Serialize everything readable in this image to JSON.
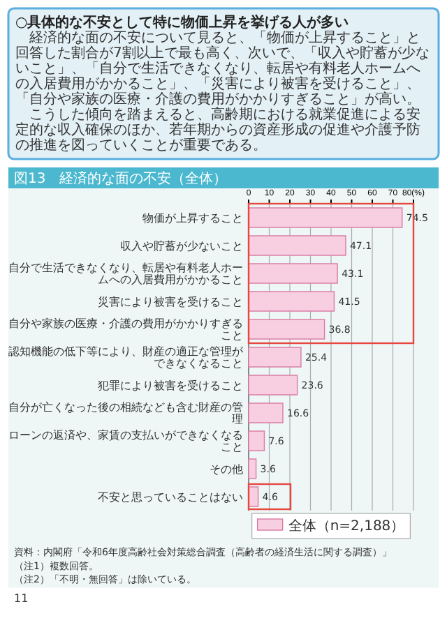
{
  "chart_data": {
    "type": "bar",
    "orientation": "horizontal",
    "title": "図13　経済的な面の不安（全体）",
    "categories": [
      "物価が上昇すること",
      "収入や貯蓄が少ないこと",
      "自分で生活できなくなり、転居や有料老人ホームへの入居費用がかかること",
      "災害により被害を受けること",
      "自分や家族の医療・介護の費用がかかりすぎること",
      "認知機能の低下等により、財産の適正な管理ができなくなること",
      "犯罪により被害を受けること",
      "自分が亡くなった後の相続なども含む財産の管理",
      "ローンの返済や、家賃の支払いができなくなること",
      "その他",
      "不安と思っていることはない"
    ],
    "series": [
      {
        "name": "全体（n=2,188）",
        "color": "#f7cfe0",
        "values": [
          74.5,
          47.1,
          43.1,
          41.5,
          36.8,
          25.4,
          23.6,
          16.6,
          7.6,
          3.6,
          4.6
        ]
      }
    ],
    "xlim": [
      0,
      80
    ],
    "xticks": [
      0,
      10,
      20,
      30,
      40,
      50,
      60,
      70,
      {
        "value": 80,
        "label": "80(%)"
      }
    ],
    "grid": "x",
    "data_labels": true,
    "legend": "bottom",
    "annotations": [
      "○具体的な不安として特に物価上昇を挙げる人が多い",
      "経済的な面の不安について見ると、「物価が上昇すること」と回答した割合が7割以上で最も高く、次いで、「収入や貯蓄が少ないこと」、「自分で生活できなくなり、転居や有料老人ホームへの入居費用がかかること」、「災害により被害を受けること」、「自分や家族の医療・介護の費用がかかりすぎること」が高い。",
      "こうした傾向を踏まえると、高齢期における就業促進による安定的な収入確保のほか、若年期からの資産形成の促進や介護予防の推進を図っていくことが重要である。",
      "資料：内閣府「令和6年度高齢社会対策総合調査（高齢者の経済生活に関する調査）」",
      "（注1）複数回答。",
      "（注2）「不明・無回答」は除いている。",
      "11"
    ]
  }
}
